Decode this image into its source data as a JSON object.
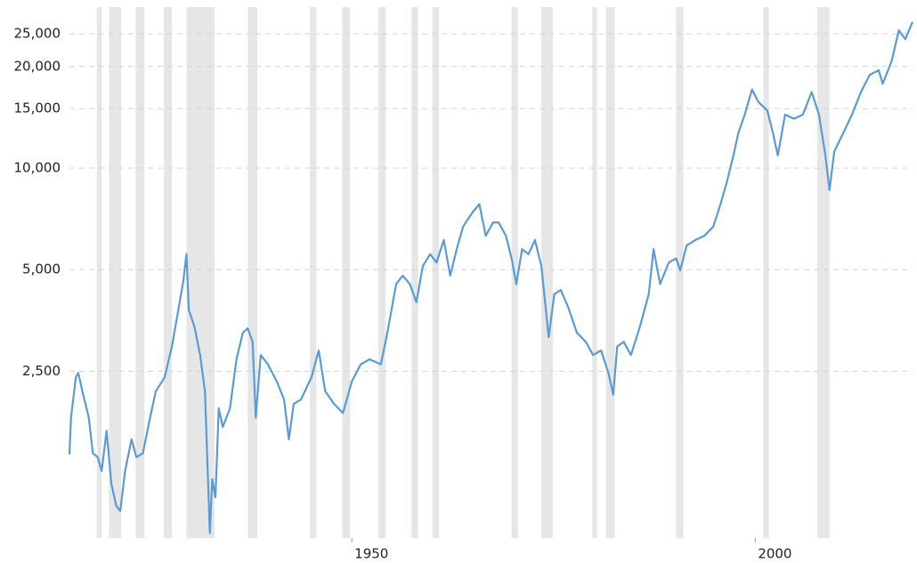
{
  "chart_data": {
    "type": "line",
    "log_scale": true,
    "grid": true,
    "color": "#5b9bd5",
    "recession_color": "#e6e6e6",
    "xlim": [
      1915,
      2019.5
    ],
    "xticks": [
      1950,
      2000
    ],
    "ylim": [
      800,
      30000
    ],
    "yticks": [
      {
        "value": 2500,
        "label": "2,500"
      },
      {
        "value": 5000,
        "label": "5,000"
      },
      {
        "value": 10000,
        "label": "10,000"
      },
      {
        "value": 15000,
        "label": "15,000"
      },
      {
        "value": 20000,
        "label": "20,000"
      },
      {
        "value": 25000,
        "label": "25,000"
      }
    ],
    "recessions": [
      [
        1918.4,
        1919.0
      ],
      [
        1919.9,
        1921.4
      ],
      [
        1923.2,
        1924.3
      ],
      [
        1926.7,
        1927.7
      ],
      [
        1929.5,
        1933.0
      ],
      [
        1937.1,
        1938.3
      ],
      [
        1944.8,
        1945.6
      ],
      [
        1948.8,
        1949.8
      ],
      [
        1953.3,
        1954.2
      ],
      [
        1957.4,
        1958.2
      ],
      [
        1960.0,
        1960.8
      ],
      [
        1969.8,
        1970.6
      ],
      [
        1973.5,
        1974.9
      ],
      [
        1979.8,
        1980.4
      ],
      [
        1981.5,
        1982.6
      ],
      [
        1990.2,
        1991.1
      ],
      [
        2001.0,
        2001.7
      ],
      [
        2007.7,
        2009.2
      ]
    ],
    "x": [
      1915.0,
      1915.2,
      1915.8,
      1916.1,
      1916.6,
      1917.4,
      1917.9,
      1918.5,
      1919.0,
      1919.6,
      1920.2,
      1920.8,
      1921.3,
      1921.9,
      1922.7,
      1923.3,
      1924.1,
      1925.0,
      1925.7,
      1926.8,
      1927.7,
      1928.5,
      1929.1,
      1929.5,
      1929.8,
      1930.5,
      1931.2,
      1931.8,
      1932.4,
      1932.7,
      1933.1,
      1933.5,
      1934.0,
      1934.9,
      1935.7,
      1936.5,
      1937.1,
      1937.7,
      1938.1,
      1938.7,
      1939.6,
      1940.7,
      1941.6,
      1942.2,
      1942.8,
      1943.7,
      1945.0,
      1945.9,
      1946.7,
      1947.8,
      1948.9,
      1950.0,
      1951.1,
      1952.2,
      1953.6,
      1954.4,
      1955.5,
      1956.3,
      1957.2,
      1958.0,
      1958.8,
      1959.7,
      1960.5,
      1961.4,
      1962.2,
      1963.0,
      1963.8,
      1964.9,
      1965.8,
      1966.6,
      1967.5,
      1968.2,
      1969.1,
      1969.8,
      1970.4,
      1971.1,
      1971.9,
      1972.7,
      1973.5,
      1974.4,
      1975.1,
      1975.9,
      1976.8,
      1977.9,
      1979.0,
      1979.9,
      1980.9,
      1981.8,
      1982.4,
      1982.9,
      1983.7,
      1984.6,
      1985.7,
      1986.8,
      1987.4,
      1988.2,
      1989.3,
      1990.2,
      1990.7,
      1991.5,
      1992.6,
      1993.7,
      1994.8,
      1995.7,
      1996.5,
      1997.3,
      1997.9,
      1998.7,
      1999.6,
      2000.4,
      2001.5,
      2002.2,
      2002.8,
      2003.7,
      2004.8,
      2005.9,
      2007.0,
      2007.9,
      2008.7,
      2009.2,
      2009.8,
      2010.9,
      2012.0,
      2013.1,
      2014.2,
      2015.3,
      2015.8,
      2016.9,
      2017.8,
      2018.6,
      2019.5
    ],
    "values": [
      1417,
      1822,
      2397,
      2470,
      2180,
      1822,
      1428,
      1390,
      1265,
      1665,
      1160,
      996,
      963,
      1265,
      1570,
      1390,
      1428,
      1822,
      2180,
      2397,
      2960,
      3800,
      4600,
      5560,
      3800,
      3380,
      2790,
      2180,
      828,
      1195,
      1057,
      1940,
      1708,
      1940,
      2710,
      3250,
      3350,
      3055,
      1822,
      2790,
      2620,
      2330,
      2060,
      1570,
      2000,
      2060,
      2400,
      2880,
      2180,
      2000,
      1880,
      2330,
      2620,
      2710,
      2620,
      3250,
      4530,
      4800,
      4530,
      4000,
      5120,
      5560,
      5250,
      6120,
      4800,
      5750,
      6710,
      7360,
      7820,
      6300,
      6900,
      6900,
      6300,
      5400,
      4530,
      5750,
      5560,
      6120,
      5120,
      3150,
      4230,
      4350,
      3880,
      3250,
      3055,
      2790,
      2880,
      2470,
      2130,
      2960,
      3055,
      2790,
      3380,
      4230,
      5750,
      4530,
      5250,
      5400,
      4970,
      5900,
      6120,
      6300,
      6710,
      7820,
      9130,
      10900,
      12700,
      14400,
      17100,
      15700,
      14800,
      12700,
      10900,
      14400,
      14000,
      14400,
      16800,
      14400,
      10900,
      8600,
      11200,
      12700,
      14400,
      16800,
      18900,
      19500,
      17800,
      20700,
      25600,
      24100,
      27100
    ]
  }
}
